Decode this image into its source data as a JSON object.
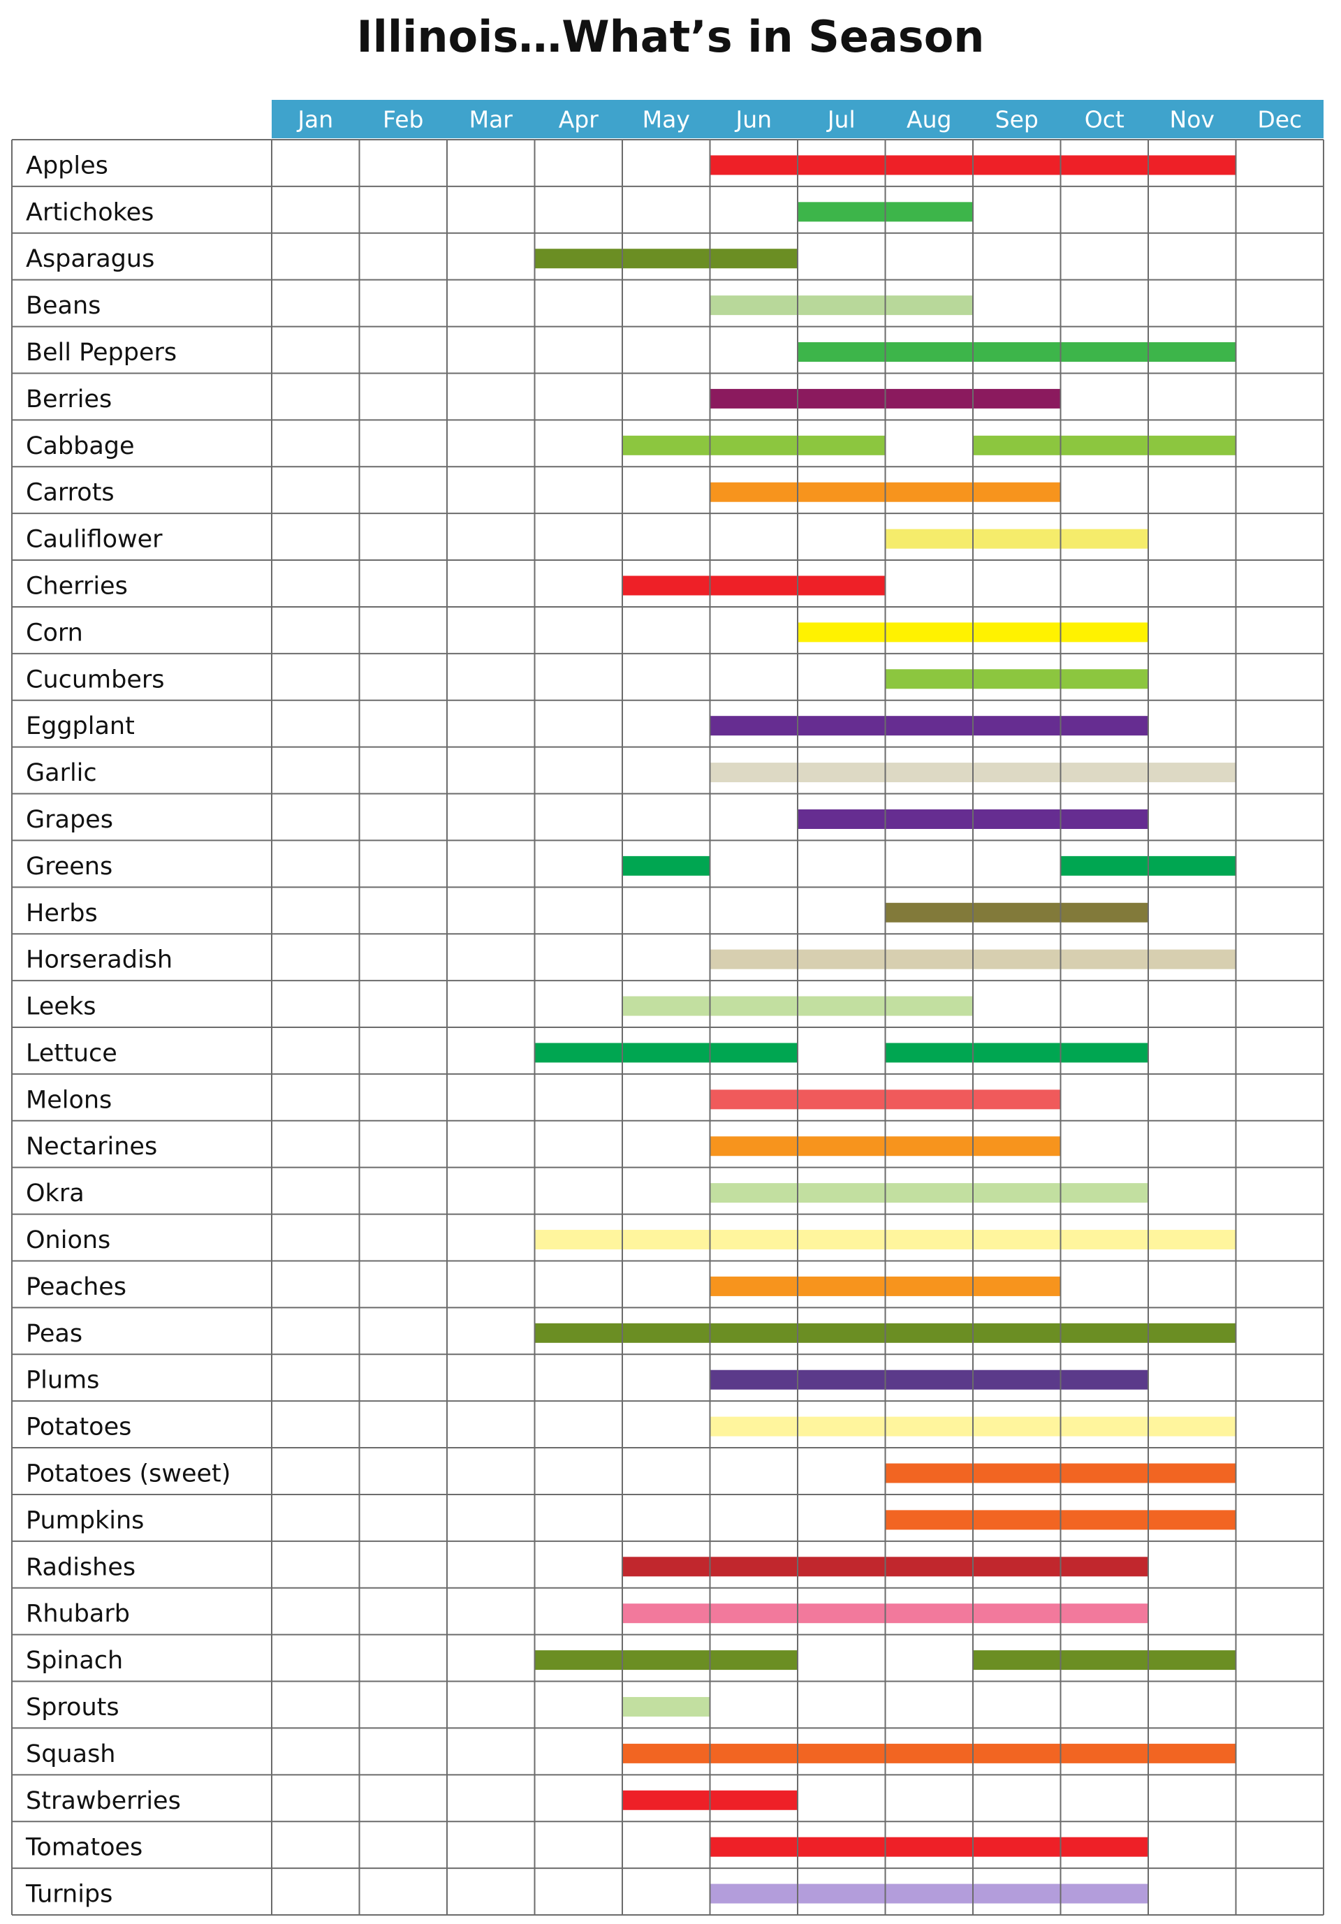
{
  "chart_data": {
    "type": "table",
    "title": "Illinois…What’s in Season",
    "columns": [
      "Jan",
      "Feb",
      "Mar",
      "Apr",
      "May",
      "Jun",
      "Jul",
      "Aug",
      "Sep",
      "Oct",
      "Nov",
      "Dec"
    ],
    "header_color": "#3fa3cc",
    "legend": "none",
    "rows": [
      {
        "name": "Apples",
        "color": "#ee2027",
        "seasons": [
          [
            6,
            11
          ]
        ]
      },
      {
        "name": "Artichokes",
        "color": "#3db54a",
        "seasons": [
          [
            7,
            8
          ]
        ]
      },
      {
        "name": "Asparagus",
        "color": "#6b8e23",
        "seasons": [
          [
            4,
            6
          ]
        ]
      },
      {
        "name": "Beans",
        "color": "#b8d89a",
        "seasons": [
          [
            6,
            8
          ]
        ]
      },
      {
        "name": "Bell Peppers",
        "color": "#3db54a",
        "seasons": [
          [
            7,
            11
          ]
        ]
      },
      {
        "name": "Berries",
        "color": "#8b1a5e",
        "seasons": [
          [
            6,
            9
          ]
        ]
      },
      {
        "name": "Cabbage",
        "color": "#8cc63f",
        "seasons": [
          [
            5,
            7
          ],
          [
            9,
            11
          ]
        ]
      },
      {
        "name": "Carrots",
        "color": "#f7941d",
        "seasons": [
          [
            6,
            9
          ]
        ]
      },
      {
        "name": "Cauliflower",
        "color": "#f5ec6b",
        "seasons": [
          [
            8,
            10
          ]
        ]
      },
      {
        "name": "Cherries",
        "color": "#ee2027",
        "seasons": [
          [
            5,
            7
          ]
        ]
      },
      {
        "name": "Corn",
        "color": "#fff200",
        "seasons": [
          [
            7,
            10
          ]
        ]
      },
      {
        "name": "Cucumbers",
        "color": "#8cc63f",
        "seasons": [
          [
            8,
            10
          ]
        ]
      },
      {
        "name": "Eggplant",
        "color": "#662d91",
        "seasons": [
          [
            6,
            10
          ]
        ]
      },
      {
        "name": "Garlic",
        "color": "#ddd9c4",
        "seasons": [
          [
            6,
            11
          ]
        ]
      },
      {
        "name": "Grapes",
        "color": "#662d91",
        "seasons": [
          [
            7,
            10
          ]
        ]
      },
      {
        "name": "Greens",
        "color": "#00a651",
        "seasons": [
          [
            5,
            5
          ],
          [
            10,
            11
          ]
        ]
      },
      {
        "name": "Herbs",
        "color": "#827a3a",
        "seasons": [
          [
            8,
            10
          ]
        ]
      },
      {
        "name": "Horseradish",
        "color": "#d7cfb0",
        "seasons": [
          [
            6,
            11
          ]
        ]
      },
      {
        "name": "Leeks",
        "color": "#c2dfa0",
        "seasons": [
          [
            5,
            8
          ]
        ]
      },
      {
        "name": "Lettuce",
        "color": "#00a651",
        "seasons": [
          [
            4,
            6
          ],
          [
            8,
            10
          ]
        ]
      },
      {
        "name": "Melons",
        "color": "#f05a5b",
        "seasons": [
          [
            6,
            9
          ]
        ]
      },
      {
        "name": "Nectarines",
        "color": "#f7941d",
        "seasons": [
          [
            6,
            9
          ]
        ]
      },
      {
        "name": "Okra",
        "color": "#c2dfa0",
        "seasons": [
          [
            6,
            10
          ]
        ]
      },
      {
        "name": "Onions",
        "color": "#fff59d",
        "seasons": [
          [
            4,
            11
          ]
        ]
      },
      {
        "name": "Peaches",
        "color": "#f7941d",
        "seasons": [
          [
            6,
            9
          ]
        ]
      },
      {
        "name": "Peas",
        "color": "#6b8e23",
        "seasons": [
          [
            4,
            11
          ]
        ]
      },
      {
        "name": "Plums",
        "color": "#5b3a8a",
        "seasons": [
          [
            6,
            10
          ]
        ]
      },
      {
        "name": "Potatoes",
        "color": "#fff59d",
        "seasons": [
          [
            6,
            11
          ]
        ]
      },
      {
        "name": "Potatoes (sweet)",
        "color": "#f26522",
        "seasons": [
          [
            8,
            11
          ]
        ]
      },
      {
        "name": "Pumpkins",
        "color": "#f26522",
        "seasons": [
          [
            8,
            11
          ]
        ]
      },
      {
        "name": "Radishes",
        "color": "#c1272d",
        "seasons": [
          [
            5,
            10
          ]
        ]
      },
      {
        "name": "Rhubarb",
        "color": "#f2799c",
        "seasons": [
          [
            5,
            10
          ]
        ]
      },
      {
        "name": "Spinach",
        "color": "#6b8e23",
        "seasons": [
          [
            4,
            6
          ],
          [
            9,
            11
          ]
        ]
      },
      {
        "name": "Sprouts",
        "color": "#c2dfa0",
        "seasons": [
          [
            5,
            5
          ]
        ]
      },
      {
        "name": "Squash",
        "color": "#f26522",
        "seasons": [
          [
            5,
            11
          ]
        ]
      },
      {
        "name": "Strawberries",
        "color": "#ee2027",
        "seasons": [
          [
            5,
            6
          ]
        ]
      },
      {
        "name": "Tomatoes",
        "color": "#ee2027",
        "seasons": [
          [
            6,
            10
          ]
        ]
      },
      {
        "name": "Turnips",
        "color": "#b39ddb",
        "seasons": [
          [
            6,
            10
          ]
        ]
      }
    ]
  }
}
